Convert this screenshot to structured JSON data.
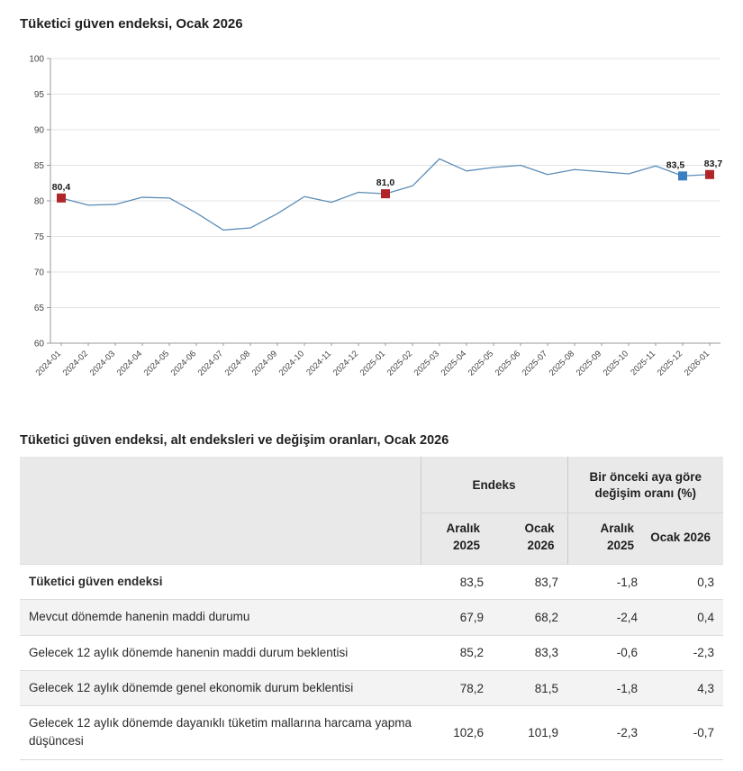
{
  "colors": {
    "line": "#5b8db8",
    "marker_red": "#b02528",
    "marker_blue": "#3c7fc0",
    "grid": "#e3e3e3",
    "axis": "#999999",
    "header_bg": "#e9e9e9"
  },
  "chart_data": {
    "type": "line",
    "title": "Tüketici güven endeksi, Ocak 2026",
    "x": [
      "2024-01",
      "2024-02",
      "2024-03",
      "2024-04",
      "2024-05",
      "2024-06",
      "2024-07",
      "2024-08",
      "2024-09",
      "2024-10",
      "2024-11",
      "2024-12",
      "2025-01",
      "2025-02",
      "2025-03",
      "2025-04",
      "2025-05",
      "2025-06",
      "2025-07",
      "2025-08",
      "2025-09",
      "2025-10",
      "2025-11",
      "2025-12",
      "2026-01"
    ],
    "values": [
      80.4,
      79.4,
      79.5,
      80.5,
      80.4,
      78.3,
      75.9,
      76.2,
      78.2,
      80.6,
      79.8,
      81.2,
      81.0,
      82.1,
      85.9,
      84.2,
      84.7,
      85.0,
      83.7,
      84.4,
      84.1,
      83.8,
      84.9,
      83.5,
      83.7
    ],
    "ylim": [
      60,
      100
    ],
    "ytick_step": 5,
    "grid": "horizontal",
    "legend": "none",
    "line_color": "#5b8db8",
    "markers": [
      {
        "index": 0,
        "label": "80,4",
        "color": "#b02528",
        "dx": 0
      },
      {
        "index": 12,
        "label": "81,0",
        "color": "#b02528",
        "dx": 0
      },
      {
        "index": 23,
        "label": "83,5",
        "color": "#3c7fc0",
        "dx": -8
      },
      {
        "index": 24,
        "label": "83,7",
        "color": "#b02528",
        "dx": 4
      }
    ]
  },
  "table": {
    "title": "Tüketici güven endeksi, alt endeksleri ve değişim oranları, Ocak 2026",
    "col_groups": [
      {
        "label": "Endeks"
      },
      {
        "label": "Bir önceki aya göre değişim oranı (%)"
      }
    ],
    "sub_headers": [
      "Aralık 2025",
      "Ocak 2026",
      "Aralık 2025",
      "Ocak 2026"
    ],
    "rows": [
      {
        "label": "Tüketici güven endeksi",
        "bold": true,
        "values": [
          "83,5",
          "83,7",
          "-1,8",
          "0,3"
        ]
      },
      {
        "label": "Mevcut dönemde hanenin maddi durumu",
        "bold": false,
        "values": [
          "67,9",
          "68,2",
          "-2,4",
          "0,4"
        ]
      },
      {
        "label": "Gelecek 12 aylık dönemde hanenin maddi durum beklentisi",
        "bold": false,
        "values": [
          "85,2",
          "83,3",
          "-0,6",
          "-2,3"
        ]
      },
      {
        "label": "Gelecek 12 aylık dönemde genel ekonomik durum beklentisi",
        "bold": false,
        "values": [
          "78,2",
          "81,5",
          "-1,8",
          "4,3"
        ]
      },
      {
        "label": "Gelecek 12 aylık dönemde dayanıklı tüketim mallarına harcama yapma düşüncesi",
        "bold": false,
        "values": [
          "102,6",
          "101,9",
          "-2,3",
          "-0,7"
        ]
      }
    ]
  }
}
